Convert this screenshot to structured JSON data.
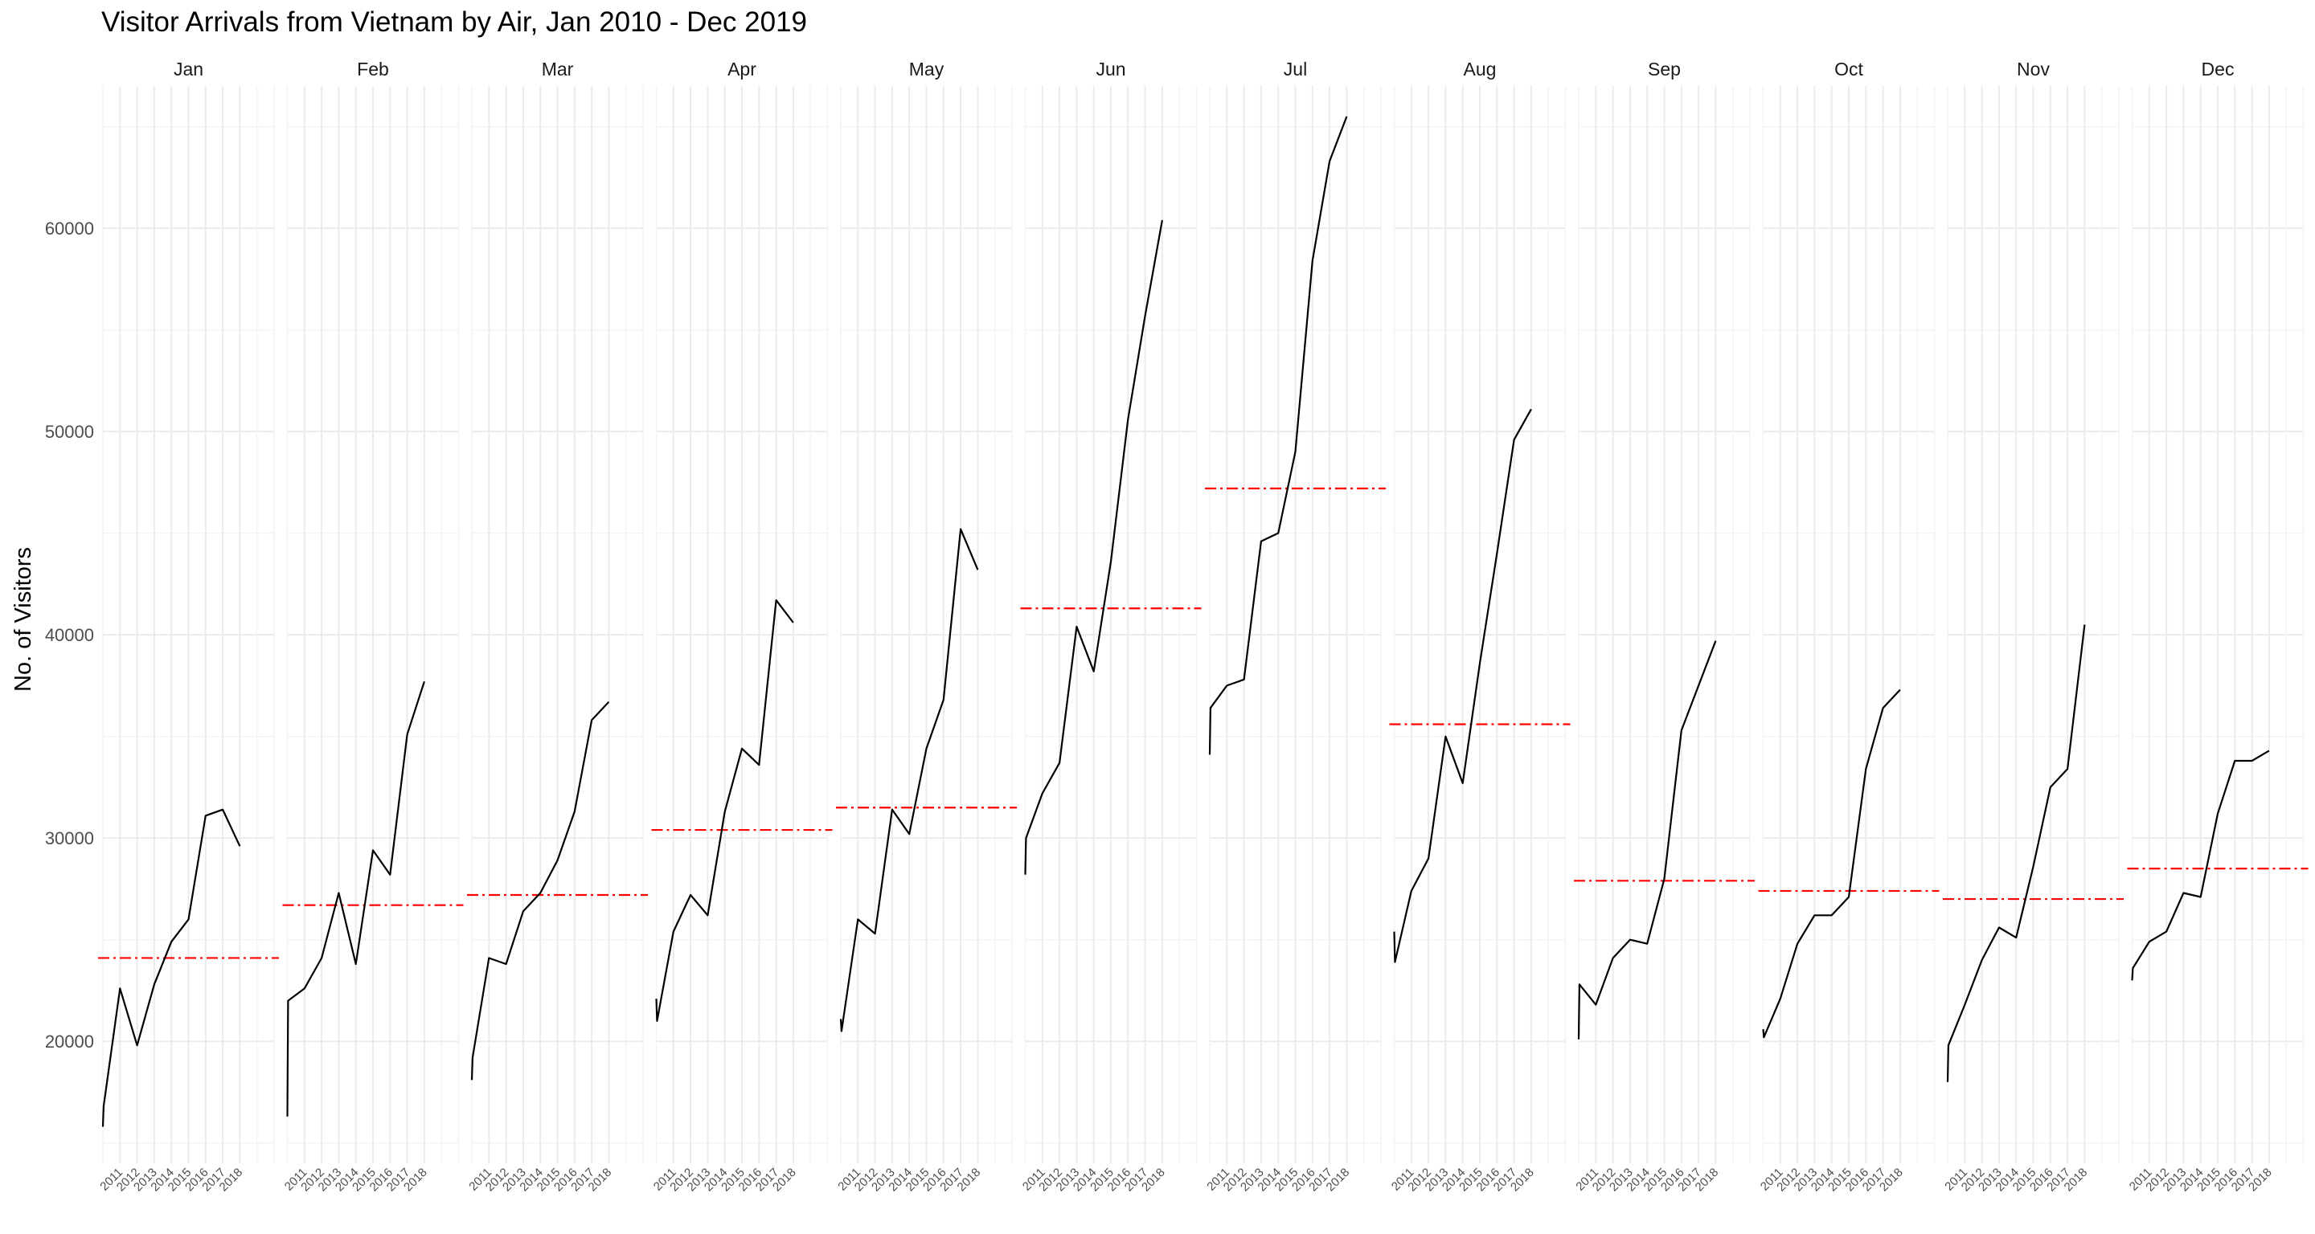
{
  "chart_data": {
    "type": "line",
    "title": "Visitor Arrivals from Vietnam by Air, Jan 2010 - Dec 2019",
    "ylabel": "No. of Visitors",
    "xlabel": "",
    "ylim": [
      14000,
      67000
    ],
    "yticks": [
      20000,
      30000,
      40000,
      50000,
      60000
    ],
    "ytick_labels": [
      "20000",
      "30000",
      "40000",
      "50000",
      "60000"
    ],
    "xlim": [
      2010,
      2020
    ],
    "xticks": [
      2011,
      2012,
      2013,
      2014,
      2015,
      2016,
      2017,
      2018
    ],
    "xtick_labels": [
      "2011",
      "2012",
      "2013",
      "2014",
      "2015",
      "2016",
      "2017",
      "2018"
    ],
    "grid": true,
    "facets": [
      {
        "month": "Jan",
        "mean": 24100,
        "values": [
          [
            2010.0,
            15800
          ],
          [
            2010.04,
            16800
          ],
          [
            2011.0,
            22600
          ],
          [
            2012.0,
            19800
          ],
          [
            2013.0,
            22800
          ],
          [
            2014.0,
            24900
          ],
          [
            2015.0,
            26000
          ],
          [
            2016.0,
            31100
          ],
          [
            2017.0,
            31400
          ],
          [
            2018.0,
            29600
          ]
        ]
      },
      {
        "month": "Feb",
        "mean": 26700,
        "values": [
          [
            2010.0,
            16300
          ],
          [
            2010.04,
            22000
          ],
          [
            2011.0,
            22600
          ],
          [
            2012.0,
            24100
          ],
          [
            2013.0,
            27300
          ],
          [
            2014.0,
            23800
          ],
          [
            2015.0,
            29400
          ],
          [
            2016.0,
            28200
          ],
          [
            2017.0,
            35100
          ],
          [
            2018.0,
            37700
          ]
        ]
      },
      {
        "month": "Mar",
        "mean": 27200,
        "values": [
          [
            2010.0,
            18100
          ],
          [
            2010.04,
            19200
          ],
          [
            2011.0,
            24100
          ],
          [
            2012.0,
            23800
          ],
          [
            2013.0,
            26400
          ],
          [
            2014.0,
            27300
          ],
          [
            2015.0,
            28900
          ],
          [
            2016.0,
            31300
          ],
          [
            2017.0,
            35800
          ],
          [
            2018.0,
            36700
          ]
        ]
      },
      {
        "month": "Apr",
        "mean": 30400,
        "values": [
          [
            2010.0,
            22100
          ],
          [
            2010.04,
            21000
          ],
          [
            2011.0,
            25400
          ],
          [
            2012.0,
            27200
          ],
          [
            2013.0,
            26200
          ],
          [
            2014.0,
            31300
          ],
          [
            2015.0,
            34400
          ],
          [
            2016.0,
            33600
          ],
          [
            2017.0,
            41700
          ],
          [
            2018.0,
            40600
          ]
        ]
      },
      {
        "month": "May",
        "mean": 31500,
        "values": [
          [
            2010.0,
            21100
          ],
          [
            2010.04,
            20500
          ],
          [
            2011.0,
            26000
          ],
          [
            2012.0,
            25300
          ],
          [
            2013.0,
            31400
          ],
          [
            2014.0,
            30200
          ],
          [
            2015.0,
            34400
          ],
          [
            2016.0,
            36800
          ],
          [
            2017.0,
            45200
          ],
          [
            2018.0,
            43200
          ]
        ]
      },
      {
        "month": "Jun",
        "mean": 41300,
        "values": [
          [
            2010.0,
            28200
          ],
          [
            2010.04,
            30000
          ],
          [
            2011.0,
            32200
          ],
          [
            2012.0,
            33700
          ],
          [
            2013.0,
            40400
          ],
          [
            2014.0,
            38200
          ],
          [
            2015.0,
            43600
          ],
          [
            2016.0,
            50600
          ],
          [
            2017.0,
            55700
          ],
          [
            2018.0,
            60400
          ]
        ]
      },
      {
        "month": "Jul",
        "mean": 47200,
        "values": [
          [
            2010.0,
            34100
          ],
          [
            2010.04,
            36400
          ],
          [
            2011.0,
            37500
          ],
          [
            2012.0,
            37800
          ],
          [
            2013.0,
            44600
          ],
          [
            2014.0,
            45000
          ],
          [
            2015.0,
            49000
          ],
          [
            2016.0,
            58400
          ],
          [
            2017.0,
            63300
          ],
          [
            2018.0,
            65500
          ]
        ]
      },
      {
        "month": "Aug",
        "mean": 35600,
        "values": [
          [
            2010.0,
            25400
          ],
          [
            2010.04,
            23900
          ],
          [
            2011.0,
            27400
          ],
          [
            2012.0,
            29000
          ],
          [
            2013.0,
            35000
          ],
          [
            2014.0,
            32700
          ],
          [
            2015.0,
            38600
          ],
          [
            2016.0,
            44000
          ],
          [
            2017.0,
            49600
          ],
          [
            2018.0,
            51100
          ]
        ]
      },
      {
        "month": "Sep",
        "mean": 27900,
        "values": [
          [
            2010.0,
            20100
          ],
          [
            2010.04,
            22800
          ],
          [
            2011.0,
            21800
          ],
          [
            2012.0,
            24100
          ],
          [
            2013.0,
            25000
          ],
          [
            2014.0,
            24800
          ],
          [
            2015.0,
            28000
          ],
          [
            2016.0,
            35300
          ],
          [
            2017.0,
            37500
          ],
          [
            2018.0,
            39700
          ]
        ]
      },
      {
        "month": "Oct",
        "mean": 27400,
        "values": [
          [
            2010.0,
            20600
          ],
          [
            2010.04,
            20200
          ],
          [
            2011.0,
            22100
          ],
          [
            2012.0,
            24800
          ],
          [
            2013.0,
            26200
          ],
          [
            2014.0,
            26200
          ],
          [
            2015.0,
            27100
          ],
          [
            2016.0,
            33400
          ],
          [
            2017.0,
            36400
          ],
          [
            2018.0,
            37300
          ]
        ]
      },
      {
        "month": "Nov",
        "mean": 27000,
        "values": [
          [
            2010.0,
            18000
          ],
          [
            2010.04,
            19800
          ],
          [
            2011.0,
            21800
          ],
          [
            2012.0,
            24000
          ],
          [
            2013.0,
            25600
          ],
          [
            2014.0,
            25100
          ],
          [
            2015.0,
            28600
          ],
          [
            2016.0,
            32500
          ],
          [
            2017.0,
            33400
          ],
          [
            2018.0,
            40500
          ]
        ]
      },
      {
        "month": "Dec",
        "mean": 28500,
        "values": [
          [
            2010.0,
            23000
          ],
          [
            2010.04,
            23600
          ],
          [
            2011.0,
            24900
          ],
          [
            2012.0,
            25400
          ],
          [
            2013.0,
            27300
          ],
          [
            2014.0,
            27100
          ],
          [
            2015.0,
            31200
          ],
          [
            2016.0,
            33800
          ],
          [
            2017.0,
            33800
          ],
          [
            2018.0,
            34300
          ]
        ]
      }
    ],
    "colors": {
      "series": "#000000",
      "mean_line": "#ff0000",
      "grid": "#ebebeb",
      "text": "#4d4d4d"
    }
  }
}
